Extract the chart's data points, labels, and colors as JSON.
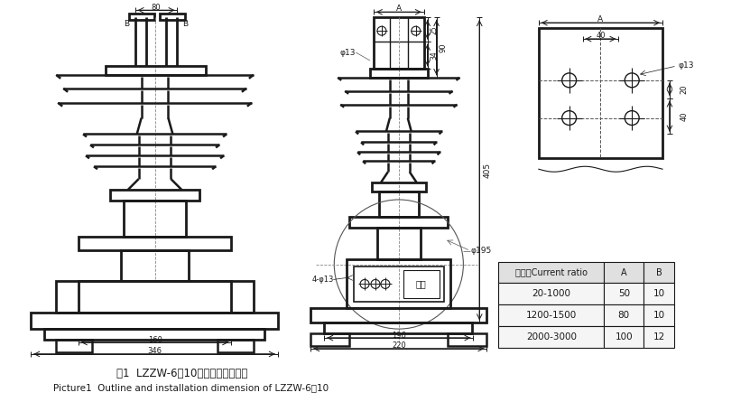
{
  "title_cn": "图1  LZZW-6、10外形及安装尺寸图",
  "title_en": "Picture1  Outline and installation dimension of LZZW-6、10",
  "table_headers": [
    "电流比Current ratio",
    "A",
    "B"
  ],
  "table_rows": [
    [
      "20-1000",
      "50",
      "10"
    ],
    [
      "1200-1500",
      "80",
      "10"
    ],
    [
      "2000-3000",
      "100",
      "12"
    ]
  ],
  "line_color": "#1a1a1a",
  "bg_color": "#ffffff"
}
